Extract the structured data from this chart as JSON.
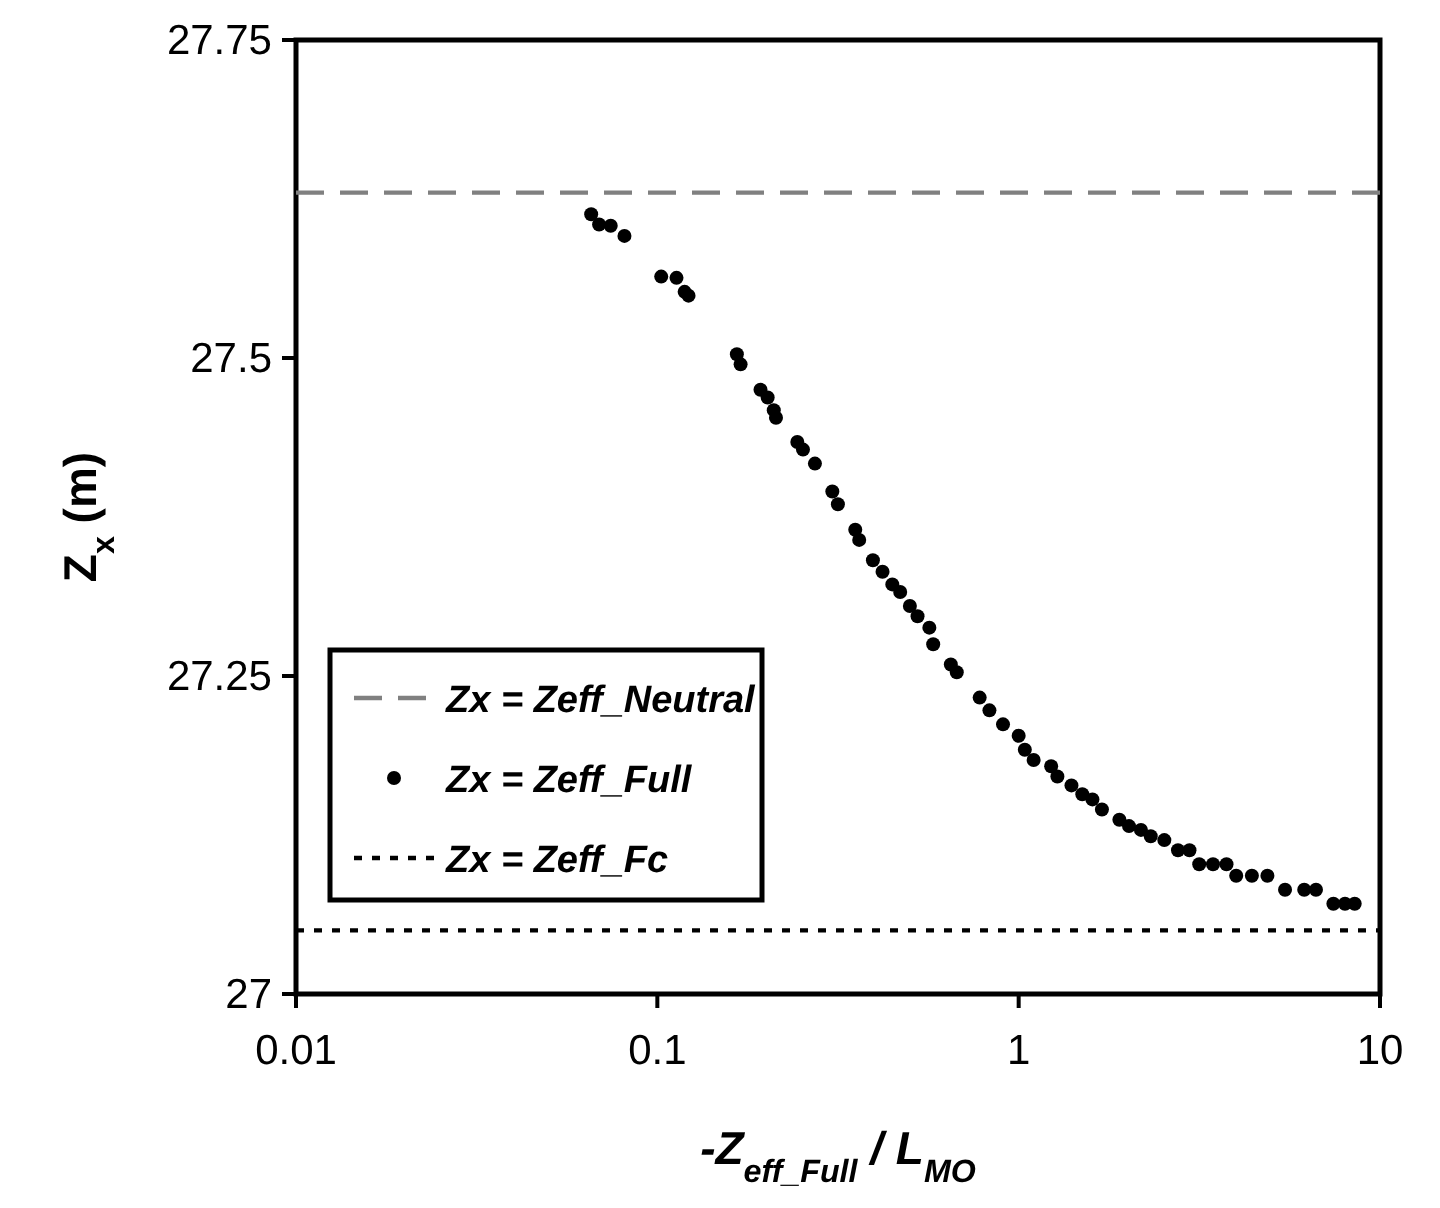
{
  "chart_data": {
    "type": "scatter",
    "xlabel": "-Z$_{eff_Full}$ / L$_{MO}$",
    "ylabel": "Z$_{x}$  (m)",
    "log": "x",
    "xlim": [
      0.01,
      10
    ],
    "xticks": [
      0.01,
      0.1,
      1,
      10
    ],
    "ylim": [
      27,
      27.75
    ],
    "yticks": [
      27,
      27.25,
      27.5,
      27.75
    ],
    "grid": false,
    "legend": "left",
    "series": [
      {
        "name": "Zx = Zeff_Neutral",
        "type": "line",
        "line_style": "dashed",
        "color": "#808080",
        "x": [
          0.01,
          10
        ],
        "values": [
          27.63,
          27.63
        ]
      },
      {
        "name": "Zx = Zeff_Full",
        "marker": "circle",
        "color": "#000000",
        "x": [
          0.0656,
          0.069,
          0.0743,
          0.0811,
          0.1025,
          0.113,
          0.119,
          0.122,
          0.166,
          0.17,
          0.193,
          0.202,
          0.21,
          0.213,
          0.244,
          0.253,
          0.273,
          0.305,
          0.316,
          0.353,
          0.362,
          0.395,
          0.42,
          0.447,
          0.47,
          0.5,
          0.525,
          0.566,
          0.58,
          0.649,
          0.674,
          0.78,
          0.83,
          0.905,
          1.0,
          1.04,
          1.1,
          1.23,
          1.28,
          1.4,
          1.5,
          1.6,
          1.7,
          1.9,
          2.02,
          2.18,
          2.32,
          2.53,
          2.76,
          2.97,
          3.16,
          3.45,
          3.76,
          4.0,
          4.42,
          4.88,
          5.46,
          6.17,
          6.65,
          7.43,
          8.0,
          8.51
        ],
        "values": [
          27.613,
          27.605,
          27.604,
          27.596,
          27.564,
          27.563,
          27.552,
          27.549,
          27.503,
          27.495,
          27.475,
          27.469,
          27.459,
          27.453,
          27.434,
          27.428,
          27.417,
          27.395,
          27.385,
          27.365,
          27.357,
          27.341,
          27.332,
          27.322,
          27.316,
          27.305,
          27.297,
          27.288,
          27.275,
          27.259,
          27.253,
          27.233,
          27.223,
          27.212,
          27.203,
          27.192,
          27.184,
          27.179,
          27.171,
          27.164,
          27.157,
          27.153,
          27.145,
          27.137,
          27.132,
          27.129,
          27.124,
          27.121,
          27.113,
          27.113,
          27.102,
          27.102,
          27.102,
          27.093,
          27.093,
          27.093,
          27.082,
          27.082,
          27.082,
          27.071,
          27.071,
          27.071
        ]
      },
      {
        "name": "Zx = Zeff_Fc",
        "type": "line",
        "line_style": "dotted",
        "color": "#000000",
        "x": [
          0.01,
          10
        ],
        "values": [
          27.05,
          27.05
        ]
      }
    ]
  }
}
